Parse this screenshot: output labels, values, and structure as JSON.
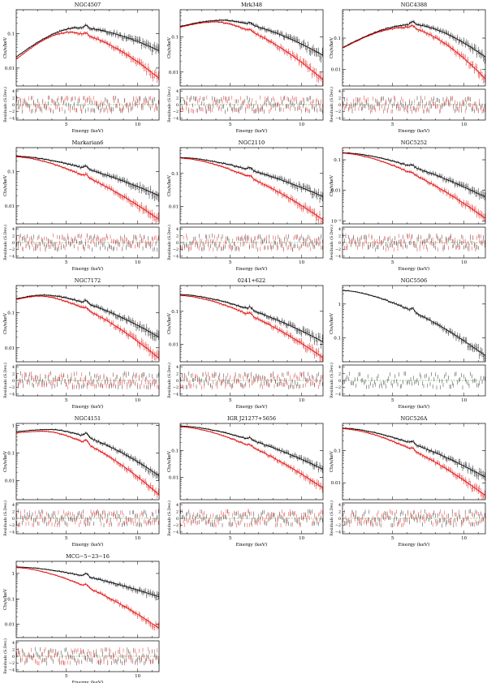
{
  "figure": {
    "series_colors": {
      "black": "#000000",
      "red": "#e00000",
      "green": "#2a8a2a"
    },
    "labels": {
      "xlabel": "Energy (keV)",
      "ylabel_spec": "Cts/s/keV",
      "ylabel_resid": "Residuals (S.Dev.)"
    }
  },
  "chart_data": [
    {
      "type": "scatter",
      "title": "NGC4507",
      "xlim": [
        1.5,
        11.5
      ],
      "xticks": [
        5,
        10
      ],
      "ylim_log": [
        0.003,
        0.5
      ],
      "yticks": [
        {
          "v": 0.1,
          "l": "0.1"
        },
        {
          "v": 0.01,
          "l": "0.01"
        }
      ],
      "resid_ylim": [
        -4.5,
        4.5
      ],
      "resid_yticks": [
        4,
        2,
        0,
        -2,
        -4
      ],
      "series": [
        {
          "name": "black",
          "start": 0.021,
          "peak": 0.15,
          "peak_e": 6.0,
          "end": 0.032,
          "line": 0.05
        },
        {
          "name": "red",
          "start": 0.018,
          "peak": 0.11,
          "peak_e": 5.3,
          "end": 0.005,
          "line": 0.04
        }
      ]
    },
    {
      "type": "scatter",
      "title": "Mrk348",
      "xlim": [
        1.5,
        11.5
      ],
      "xticks": [
        5,
        10
      ],
      "ylim_log": [
        0.004,
        0.6
      ],
      "yticks": [
        {
          "v": 0.1,
          "l": "0.1"
        },
        {
          "v": 0.01,
          "l": "0.01"
        }
      ],
      "resid_ylim": [
        -4.5,
        4.5
      ],
      "resid_yticks": [
        4,
        2,
        0,
        -2,
        -4
      ],
      "series": [
        {
          "name": "black",
          "start": 0.2,
          "peak": 0.3,
          "peak_e": 4.5,
          "end": 0.03,
          "line": 0.04
        },
        {
          "name": "red",
          "start": 0.19,
          "peak": 0.27,
          "peak_e": 4.0,
          "end": 0.006,
          "line": 0.03
        }
      ]
    },
    {
      "type": "scatter",
      "title": "NGC4388",
      "xlim": [
        1.5,
        11.5
      ],
      "xticks": [
        5,
        10
      ],
      "ylim_log": [
        0.003,
        0.8
      ],
      "yticks": [
        {
          "v": 0.1,
          "l": "0.1"
        },
        {
          "v": 0.01,
          "l": "0.01"
        }
      ],
      "resid_ylim": [
        -4.5,
        4.5
      ],
      "resid_yticks": [
        4,
        2,
        0,
        -2,
        -4
      ],
      "series": [
        {
          "name": "black",
          "start": 0.05,
          "peak": 0.27,
          "peak_e": 6.5,
          "end": 0.025,
          "line": 0.06
        },
        {
          "name": "red",
          "start": 0.048,
          "peak": 0.22,
          "peak_e": 6.0,
          "end": 0.005,
          "line": 0.05
        }
      ]
    },
    {
      "type": "scatter",
      "title": "Markarian6",
      "xlim": [
        1.5,
        11.5
      ],
      "xticks": [
        5,
        10
      ],
      "ylim_log": [
        0.003,
        0.5
      ],
      "yticks": [
        {
          "v": 0.1,
          "l": "0.1"
        },
        {
          "v": 0.01,
          "l": "0.01"
        }
      ],
      "resid_ylim": [
        -4.5,
        4.5
      ],
      "resid_yticks": [
        4,
        2,
        0,
        -2,
        -4
      ],
      "series": [
        {
          "name": "black",
          "start": 0.28,
          "peak": 0.28,
          "peak_e": 1.5,
          "end": 0.02,
          "line": 0.05
        },
        {
          "name": "red",
          "start": 0.27,
          "peak": 0.27,
          "peak_e": 1.5,
          "end": 0.004,
          "line": 0.04
        }
      ]
    },
    {
      "type": "scatter",
      "title": "NGC2110",
      "xlim": [
        1.5,
        11.5
      ],
      "xticks": [
        5,
        10
      ],
      "ylim_log": [
        0.003,
        0.6
      ],
      "yticks": [
        {
          "v": 0.1,
          "l": "0.1"
        },
        {
          "v": 0.01,
          "l": "0.01"
        }
      ],
      "resid_ylim": [
        -4.5,
        4.5
      ],
      "resid_yticks": [
        4,
        2,
        0,
        -2,
        -4
      ],
      "series": [
        {
          "name": "black",
          "start": 0.3,
          "peak": 0.3,
          "peak_e": 1.5,
          "end": 0.02,
          "line": 0.05
        },
        {
          "name": "red",
          "start": 0.29,
          "peak": 0.29,
          "peak_e": 1.5,
          "end": 0.004,
          "line": 0.04
        }
      ]
    },
    {
      "type": "scatter",
      "title": "NGC5252",
      "xlim": [
        1.5,
        11.5
      ],
      "xticks": [
        5,
        10
      ],
      "ylim_log": [
        0.0008,
        0.25
      ],
      "yticks": [
        {
          "v": 0.1,
          "l": "0.1"
        },
        {
          "v": 0.01,
          "l": "0.01"
        },
        {
          "v": 0.001,
          "l": "10⁻³"
        }
      ],
      "resid_ylim": [
        -4.5,
        4.5
      ],
      "resid_yticks": [
        4,
        2,
        0,
        -2,
        -4
      ],
      "series": [
        {
          "name": "black",
          "start": 0.17,
          "peak": 0.17,
          "peak_e": 1.5,
          "end": 0.006,
          "line": 0.04
        },
        {
          "name": "red",
          "start": 0.165,
          "peak": 0.165,
          "peak_e": 1.5,
          "end": 0.0012,
          "line": 0.03
        }
      ]
    },
    {
      "type": "scatter",
      "title": "NGC7172",
      "xlim": [
        1.5,
        11.5
      ],
      "xticks": [
        5,
        10
      ],
      "ylim_log": [
        0.004,
        0.6
      ],
      "yticks": [
        {
          "v": 0.1,
          "l": "0.1"
        },
        {
          "v": 0.01,
          "l": "0.01"
        }
      ],
      "resid_ylim": [
        -4.5,
        4.5
      ],
      "resid_yticks": [
        4,
        2,
        0,
        -2,
        -4
      ],
      "series": [
        {
          "name": "black",
          "start": 0.25,
          "peak": 0.32,
          "peak_e": 3.5,
          "end": 0.02,
          "line": 0.05
        },
        {
          "name": "red",
          "start": 0.24,
          "peak": 0.3,
          "peak_e": 3.2,
          "end": 0.005,
          "line": 0.04
        }
      ]
    },
    {
      "type": "scatter",
      "title": "0241+622",
      "xlim": [
        1.5,
        11.5
      ],
      "xticks": [
        5,
        10
      ],
      "ylim_log": [
        0.003,
        0.6
      ],
      "yticks": [
        {
          "v": 0.1,
          "l": "0.1"
        },
        {
          "v": 0.01,
          "l": "0.01"
        }
      ],
      "resid_ylim": [
        -4.5,
        4.5
      ],
      "resid_yticks": [
        4,
        2,
        0,
        -2,
        -4
      ],
      "series": [
        {
          "name": "black",
          "start": 0.32,
          "peak": 0.32,
          "peak_e": 1.5,
          "end": 0.012,
          "line": 0.05
        },
        {
          "name": "red",
          "start": 0.3,
          "peak": 0.3,
          "peak_e": 1.5,
          "end": 0.004,
          "line": 0.04
        }
      ]
    },
    {
      "type": "scatter",
      "title": "NGC5506",
      "xlim": [
        1.5,
        11.5
      ],
      "xticks": [
        5,
        10
      ],
      "ylim_log": [
        0.02,
        3.5
      ],
      "yticks": [
        {
          "v": 1,
          "l": "1"
        },
        {
          "v": 0.1,
          "l": "0.1"
        }
      ],
      "resid_ylim": [
        -4.5,
        4.5
      ],
      "resid_yticks": [
        4,
        2,
        0,
        -2,
        -4
      ],
      "series": [
        {
          "name": "black",
          "start": 2.5,
          "peak": 2.5,
          "peak_e": 1.5,
          "end": 0.03,
          "line": 0.06
        }
      ]
    },
    {
      "type": "scatter",
      "title": "NGC4151",
      "xlim": [
        1.5,
        11.5
      ],
      "xticks": [
        5,
        10
      ],
      "ylim_log": [
        0.002,
        1.2
      ],
      "yticks": [
        {
          "v": 1,
          "l": "1"
        },
        {
          "v": 0.1,
          "l": "0.1"
        },
        {
          "v": 0.01,
          "l": "0.01"
        }
      ],
      "resid_ylim": [
        -4.5,
        4.5
      ],
      "resid_yticks": [
        4,
        2,
        0,
        -2,
        -4
      ],
      "series": [
        {
          "name": "black",
          "start": 0.6,
          "peak": 0.72,
          "peak_e": 4.0,
          "end": 0.015,
          "line": 0.1
        },
        {
          "name": "red",
          "start": 0.55,
          "peak": 0.62,
          "peak_e": 3.5,
          "end": 0.003,
          "line": 0.1
        }
      ]
    },
    {
      "type": "scatter",
      "title": "IGR J21277+5656",
      "xlim": [
        1.5,
        11.5
      ],
      "xticks": [
        5,
        10
      ],
      "ylim_log": [
        0.0015,
        1.0
      ],
      "yticks": [
        {
          "v": 0.1,
          "l": "0.1"
        },
        {
          "v": 0.01,
          "l": "0.01"
        },
        {
          "v": 0.001,
          "l": "0.001"
        }
      ],
      "resid_ylim": [
        -4.5,
        4.5
      ],
      "resid_yticks": [
        4,
        2,
        0,
        -2,
        -4
      ],
      "series": [
        {
          "name": "black",
          "start": 0.8,
          "peak": 0.8,
          "peak_e": 1.5,
          "end": 0.02,
          "line": 0.05
        },
        {
          "name": "red",
          "start": 0.75,
          "peak": 0.75,
          "peak_e": 1.5,
          "end": 0.004,
          "line": 0.04
        }
      ]
    },
    {
      "type": "scatter",
      "title": "NGC526A",
      "xlim": [
        1.5,
        11.5
      ],
      "xticks": [
        5,
        10
      ],
      "ylim_log": [
        0.003,
        0.7
      ],
      "yticks": [
        {
          "v": 0.1,
          "l": "0.1"
        },
        {
          "v": 0.01,
          "l": "0.01"
        }
      ],
      "resid_ylim": [
        -4.5,
        4.5
      ],
      "resid_yticks": [
        4,
        2,
        0,
        -2,
        -4
      ],
      "series": [
        {
          "name": "black",
          "start": 0.5,
          "peak": 0.5,
          "peak_e": 1.5,
          "end": 0.015,
          "line": 0.05
        },
        {
          "name": "red",
          "start": 0.48,
          "peak": 0.48,
          "peak_e": 1.5,
          "end": 0.004,
          "line": 0.04
        }
      ]
    },
    {
      "type": "scatter",
      "title": "MCG−5−23−16",
      "xlim": [
        1.5,
        11.5
      ],
      "xticks": [
        5,
        10
      ],
      "ylim_log": [
        0.003,
        3.0
      ],
      "yticks": [
        {
          "v": 1,
          "l": "1"
        },
        {
          "v": 0.1,
          "l": "0.1"
        },
        {
          "v": 0.01,
          "l": "0.01"
        }
      ],
      "resid_ylim": [
        -4.5,
        4.5
      ],
      "resid_yticks": [
        4,
        2,
        0,
        -2,
        -4
      ],
      "series": [
        {
          "name": "black",
          "start": 1.8,
          "peak": 1.8,
          "peak_e": 1.5,
          "end": 0.12,
          "line": 0.08
        },
        {
          "name": "red",
          "start": 1.7,
          "peak": 1.7,
          "peak_e": 1.5,
          "end": 0.007,
          "line": 0.06
        }
      ]
    }
  ]
}
